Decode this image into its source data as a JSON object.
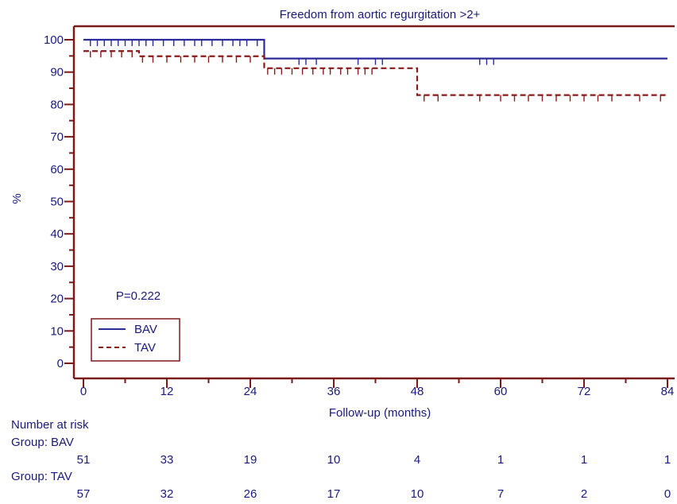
{
  "chart_data": {
    "type": "line",
    "subtype": "kaplan-meier",
    "title": "Freedom from aortic regurgitation >2+",
    "xlabel": "Follow-up (months)",
    "ylabel": "%",
    "xlim": [
      0,
      84
    ],
    "ylim": [
      0,
      100
    ],
    "x_ticks": [
      0,
      12,
      24,
      36,
      48,
      60,
      72,
      84
    ],
    "y_ticks": [
      0,
      10,
      20,
      30,
      40,
      50,
      60,
      70,
      80,
      90,
      100
    ],
    "grid": false,
    "legend_position": "bottom-left",
    "annotation": "P=0.222",
    "series": [
      {
        "name": "BAV",
        "color": "#2b2b9a",
        "line_style": "solid",
        "steps": [
          {
            "x": 0,
            "y": 100
          },
          {
            "x": 26,
            "y": 94.2
          },
          {
            "x": 84,
            "y": 94.2
          }
        ],
        "censor_x": [
          1,
          2,
          3,
          4,
          5,
          6,
          7,
          8,
          9,
          10,
          11.5,
          13,
          14.5,
          16,
          17,
          18.5,
          20,
          21.5,
          22.5,
          23.5,
          25,
          31,
          32,
          33.5,
          39.5,
          42,
          43,
          57,
          58,
          59
        ]
      },
      {
        "name": "TAV",
        "color": "#8b1a1a",
        "line_style": "dashed",
        "steps": [
          {
            "x": 0,
            "y": 96.5
          },
          {
            "x": 8,
            "y": 94.9
          },
          {
            "x": 26,
            "y": 91.2
          },
          {
            "x": 48,
            "y": 82.9
          },
          {
            "x": 84,
            "y": 82.9
          }
        ],
        "censor_x": [
          1,
          2.5,
          4,
          5.5,
          7,
          8.5,
          10,
          12,
          14,
          16,
          18,
          20,
          22,
          24,
          26.5,
          27.5,
          28.5,
          30,
          31.5,
          33,
          34.5,
          35.5,
          37,
          38,
          39.5,
          40.5,
          41.5,
          49,
          51,
          57,
          60,
          62,
          64,
          66,
          68,
          70,
          72,
          74,
          76,
          80,
          83
        ]
      }
    ],
    "risk_table": {
      "title": "Number at risk",
      "rows": [
        {
          "group": "Group: BAV",
          "values": [
            "51",
            "33",
            "19",
            "10",
            "4",
            "1",
            "1",
            "1"
          ]
        },
        {
          "group": "Group: TAV",
          "values": [
            "57",
            "32",
            "26",
            "17",
            "10",
            "7",
            "2",
            "0"
          ]
        }
      ]
    }
  }
}
